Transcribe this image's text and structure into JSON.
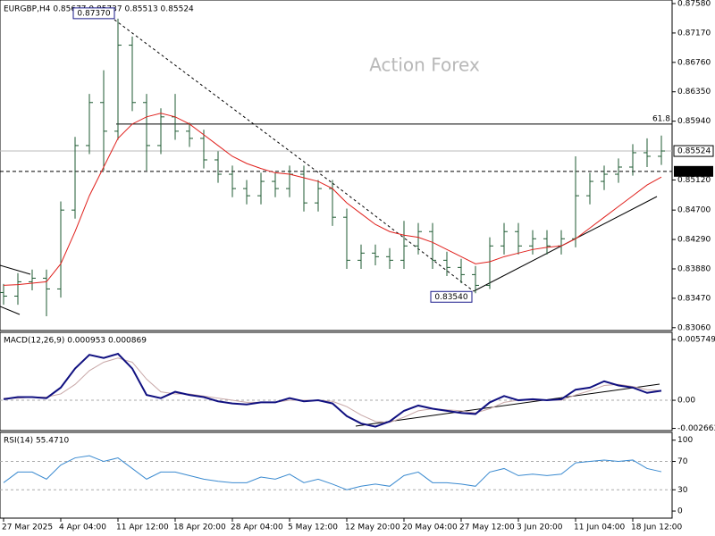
{
  "chart_data": {
    "type": "ohlc",
    "title": "EURGBP,H4  0.85677 0.85737 0.85513 0.85524",
    "watermark": "Action Forex",
    "color": "#1e5a32",
    "categories": [
      "27 Mar 2025",
      null,
      null,
      null,
      "4 Apr 04:00",
      null,
      null,
      null,
      "11 Apr 12:00",
      null,
      null,
      null,
      "18 Apr 20:00",
      null,
      null,
      null,
      "28 Apr 04:00",
      null,
      null,
      null,
      "5 May 12:00",
      null,
      null,
      null,
      "12 May 20:00",
      null,
      null,
      null,
      "20 May 04:00",
      null,
      null,
      null,
      "27 May 12:00",
      null,
      null,
      null,
      "3 Jun 20:00",
      null,
      null,
      null,
      "11 Jun 04:00",
      null,
      null,
      null,
      "18 Jun 12:00",
      null,
      null
    ],
    "open": [
      0.8355,
      0.835,
      0.837,
      0.8375,
      0.836,
      0.847,
      0.856,
      0.862,
      0.858,
      0.87,
      0.862,
      0.856,
      0.86,
      0.858,
      0.857,
      0.854,
      0.852,
      0.85,
      0.849,
      0.851,
      0.85,
      0.852,
      0.848,
      0.85,
      0.846,
      0.84,
      0.841,
      0.8405,
      0.84,
      0.842,
      0.844,
      0.84,
      0.839,
      0.838,
      0.8365,
      0.842,
      0.844,
      0.842,
      0.843,
      0.842,
      0.843,
      0.849,
      0.851,
      0.852,
      0.853,
      0.855,
      0.8545
    ],
    "high": [
      0.8367,
      0.8382,
      0.8387,
      0.8387,
      0.8482,
      0.8572,
      0.8632,
      0.8665,
      0.8737,
      0.8712,
      0.8632,
      0.8612,
      0.8632,
      0.8592,
      0.8582,
      0.8552,
      0.8532,
      0.8512,
      0.8522,
      0.8522,
      0.8532,
      0.8532,
      0.8512,
      0.8512,
      0.8472,
      0.8422,
      0.8422,
      0.8417,
      0.8455,
      0.8452,
      0.8452,
      0.8412,
      0.8402,
      0.8392,
      0.8432,
      0.8452,
      0.8452,
      0.8442,
      0.8442,
      0.8442,
      0.8545,
      0.8522,
      0.8532,
      0.8542,
      0.8562,
      0.857,
      0.8574
    ],
    "low": [
      0.8338,
      0.8338,
      0.8358,
      0.8322,
      0.8348,
      0.8458,
      0.8548,
      0.8525,
      0.8568,
      0.8608,
      0.8525,
      0.8548,
      0.8568,
      0.8558,
      0.8528,
      0.8508,
      0.8488,
      0.8478,
      0.8478,
      0.8488,
      0.8488,
      0.8468,
      0.8468,
      0.8448,
      0.8388,
      0.8388,
      0.8393,
      0.8388,
      0.8388,
      0.8408,
      0.8388,
      0.8378,
      0.8368,
      0.8354,
      0.836,
      0.8408,
      0.8408,
      0.8408,
      0.8408,
      0.8408,
      0.8418,
      0.8478,
      0.8498,
      0.8508,
      0.8518,
      0.853,
      0.8533
    ],
    "close": [
      0.835,
      0.837,
      0.8375,
      0.836,
      0.847,
      0.856,
      0.862,
      0.858,
      0.87,
      0.862,
      0.856,
      0.86,
      0.858,
      0.857,
      0.854,
      0.852,
      0.85,
      0.849,
      0.851,
      0.85,
      0.852,
      0.848,
      0.85,
      0.846,
      0.84,
      0.841,
      0.8405,
      0.84,
      0.842,
      0.844,
      0.84,
      0.839,
      0.838,
      0.8365,
      0.842,
      0.844,
      0.842,
      0.843,
      0.842,
      0.843,
      0.849,
      0.851,
      0.852,
      0.853,
      0.855,
      0.8545,
      0.85524
    ],
    "ma": {
      "color": "#e0201c",
      "values": [
        0.8365,
        0.8366,
        0.8368,
        0.837,
        0.8395,
        0.844,
        0.849,
        0.853,
        0.857,
        0.859,
        0.86,
        0.8605,
        0.86,
        0.859,
        0.8575,
        0.856,
        0.8545,
        0.8535,
        0.8528,
        0.8522,
        0.852,
        0.8515,
        0.851,
        0.85,
        0.848,
        0.8465,
        0.845,
        0.844,
        0.8435,
        0.8432,
        0.8425,
        0.8415,
        0.8405,
        0.8395,
        0.8398,
        0.8405,
        0.841,
        0.8415,
        0.8418,
        0.842,
        0.843,
        0.8445,
        0.846,
        0.8475,
        0.849,
        0.8505,
        0.8516
      ]
    },
    "ylim": [
      0.8302,
      0.8763
    ],
    "yticks": [
      {
        "value": 0.8758,
        "label": "0.87580"
      },
      {
        "value": 0.8717,
        "label": "0.87170"
      },
      {
        "value": 0.8676,
        "label": "0.86760"
      },
      {
        "value": 0.8635,
        "label": "0.86350"
      },
      {
        "value": 0.8594,
        "label": "0.85940"
      },
      {
        "value": 0.8512,
        "label": "0.85120"
      },
      {
        "value": 0.847,
        "label": "0.84700"
      },
      {
        "value": 0.8429,
        "label": "0.84290"
      },
      {
        "value": 0.8388,
        "label": "0.83880"
      },
      {
        "value": 0.8347,
        "label": "0.83470"
      },
      {
        "value": 0.8306,
        "label": "0.83060"
      }
    ],
    "last": {
      "value": 0.85524,
      "label": "0.85524"
    },
    "levels": [
      {
        "value": 0.859,
        "label": "61.8"
      },
      {
        "value": 0.8524,
        "label": "0.85240"
      }
    ],
    "annotations": [
      {
        "value": 0.8737,
        "label": "0.87370",
        "at": "high"
      },
      {
        "value": 0.8354,
        "label": "0.83540",
        "at": "low"
      }
    ],
    "macd": {
      "title": "MACD(12,26,9) 0.000953 0.000869",
      "ylim": [
        -0.00287,
        0.00643
      ],
      "yticks": [
        0.005749,
        {
          "value": 0,
          "label": "0.00"
        },
        -0.002663
      ],
      "series": [
        {
          "color": "#101080",
          "values": [
            0.0001,
            0.0003,
            0.0003,
            0.0002,
            0.0012,
            0.003,
            0.0043,
            0.004,
            0.0044,
            0.003,
            0.0005,
            0.0002,
            0.0008,
            0.0005,
            0.0003,
            -0.0001,
            -0.0003,
            -0.0004,
            -0.0002,
            -0.0002,
            0.0002,
            -0.0001,
            0,
            -0.0003,
            -0.0015,
            -0.0022,
            -0.0025,
            -0.002,
            -0.001,
            -0.0005,
            -0.0008,
            -0.001,
            -0.0012,
            -0.0013,
            -0.0002,
            0.0004,
            0,
            0.0001,
            0,
            0.0001,
            0.001,
            0.0012,
            0.0018,
            0.0014,
            0.0012,
            0.0007,
            0.0009
          ]
        },
        {
          "color": "#c8a8a8",
          "values": [
            0.0002,
            0.0002,
            0.0003,
            0.0003,
            0.0006,
            0.0015,
            0.0028,
            0.0036,
            0.004,
            0.0036,
            0.002,
            0.0008,
            0.0006,
            0.0006,
            0.0004,
            0.0002,
            0,
            -0.0002,
            -0.0002,
            -0.0002,
            0,
            0,
            0,
            -0.0001,
            -0.0006,
            -0.0014,
            -0.002,
            -0.0021,
            -0.0016,
            -0.001,
            -0.0008,
            -0.0009,
            -0.001,
            -0.0012,
            -0.0008,
            -0.0002,
            0,
            0,
            0,
            0,
            0.0005,
            0.0009,
            0.0014,
            0.0015,
            0.0013,
            0.001,
            0.0009
          ]
        }
      ]
    },
    "rsi": {
      "title": "RSI(14) 55.4710",
      "ylim": [
        -10,
        111
      ],
      "yticks": [
        100,
        70,
        30,
        0
      ],
      "levels": [
        70,
        30
      ],
      "color": "#3a8ad0",
      "values": [
        40,
        55,
        55,
        45,
        65,
        75,
        78,
        70,
        75,
        60,
        45,
        55,
        55,
        50,
        45,
        42,
        40,
        40,
        48,
        45,
        52,
        40,
        45,
        38,
        30,
        35,
        38,
        35,
        50,
        55,
        40,
        40,
        38,
        35,
        55,
        60,
        50,
        52,
        50,
        52,
        68,
        70,
        72,
        70,
        72,
        60,
        55.471
      ]
    }
  }
}
